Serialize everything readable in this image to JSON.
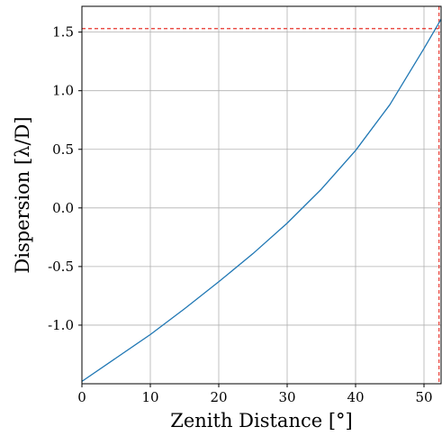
{
  "chart_data": {
    "type": "line",
    "xlabel": "Zenith Distance [°]",
    "ylabel": "Dispersion [λ/D]",
    "xlim": [
      0,
      52.5
    ],
    "ylim": [
      -1.5,
      1.72
    ],
    "grid": true,
    "x_ticks": [
      0,
      10,
      20,
      30,
      40,
      50
    ],
    "x_tick_labels": [
      "0",
      "10",
      "20",
      "30",
      "40",
      "50"
    ],
    "y_ticks": [
      -1.0,
      -0.5,
      0.0,
      0.5,
      1.0,
      1.5
    ],
    "y_tick_labels": [
      "-1.0",
      "-0.5",
      "0.0",
      "0.5",
      "1.0",
      "1.5"
    ],
    "series": [
      {
        "color": "#1f77b4",
        "x": [
          0,
          5,
          10,
          15,
          20,
          25,
          30,
          35,
          40,
          45,
          50,
          52.5
        ],
        "y": [
          -1.48,
          -1.28,
          -1.08,
          -0.86,
          -0.63,
          -0.39,
          -0.13,
          0.16,
          0.49,
          0.88,
          1.36,
          1.61
        ]
      }
    ],
    "reference_lines": [
      {
        "orientation": "horizontal",
        "y": 1.53,
        "color": "#e8332b",
        "style": "dashed"
      },
      {
        "orientation": "vertical",
        "x": 52.2,
        "color": "#e8332b",
        "style": "dashed"
      }
    ]
  }
}
